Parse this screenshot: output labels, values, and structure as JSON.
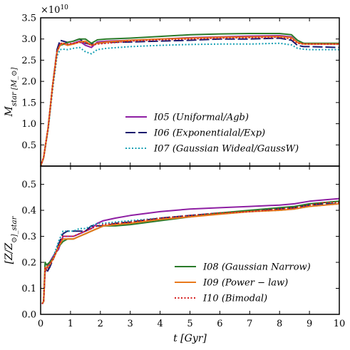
{
  "chart_data": [
    {
      "type": "line",
      "ylabel": "M_star [M_⊙]",
      "multiplier": "×10^10",
      "xlim": [
        0,
        10
      ],
      "ylim": [
        0,
        3.5
      ],
      "xticks": [
        0,
        1,
        2,
        3,
        4,
        5,
        6,
        7,
        8,
        9,
        10
      ],
      "yticks": [
        0.5,
        1.0,
        1.5,
        2.0,
        2.5,
        3.0,
        3.5
      ],
      "ytick_labels": [
        "0.5",
        "1.0",
        "1.5",
        "2.0",
        "2.5",
        "3.0",
        "3.5"
      ],
      "grid": false,
      "legend_position": "lower-center",
      "series": [
        {
          "name": "I05 (Uniformal/Agb)",
          "color": "#8e1fa3",
          "dash": "solid",
          "x": [
            0,
            0.1,
            0.25,
            0.4,
            0.55,
            0.65,
            0.75,
            0.9,
            1.1,
            1.3,
            1.5,
            1.7,
            1.9,
            2.2,
            3,
            4,
            5,
            6,
            7,
            8,
            8.4,
            8.6,
            8.8,
            9,
            10
          ],
          "y": [
            0,
            0.2,
            0.9,
            1.9,
            2.7,
            2.88,
            2.88,
            2.86,
            2.9,
            2.95,
            2.85,
            2.8,
            2.93,
            2.95,
            2.97,
            3.0,
            3.03,
            3.05,
            3.07,
            3.08,
            3.05,
            2.92,
            2.9,
            2.88,
            2.88
          ]
        },
        {
          "name": "I06 (Exponentialal/Exp)",
          "color": "#1a1a6e",
          "dash": "long",
          "x": [
            0,
            0.1,
            0.25,
            0.4,
            0.55,
            0.65,
            0.75,
            0.9,
            1.1,
            1.3,
            1.5,
            1.7,
            1.9,
            2.2,
            3,
            4,
            5,
            6,
            7,
            8,
            8.4,
            8.6,
            8.8,
            9,
            10
          ],
          "y": [
            0,
            0.2,
            0.9,
            1.9,
            2.75,
            2.97,
            2.95,
            2.92,
            2.95,
            3.0,
            2.9,
            2.87,
            2.9,
            2.92,
            2.93,
            2.95,
            2.97,
            3.0,
            3.0,
            3.02,
            2.97,
            2.85,
            2.82,
            2.82,
            2.8
          ]
        },
        {
          "name": "I07 (Gaussian Wideal/GaussW)",
          "color": "#16a0b4",
          "dash": "dotted",
          "x": [
            0,
            0.1,
            0.25,
            0.4,
            0.55,
            0.65,
            0.75,
            0.9,
            1.1,
            1.3,
            1.5,
            1.7,
            1.9,
            2.2,
            3,
            4,
            5,
            6,
            7,
            8,
            8.4,
            8.6,
            8.8,
            9,
            10
          ],
          "y": [
            0,
            0.2,
            0.85,
            1.8,
            2.6,
            2.75,
            2.76,
            2.75,
            2.78,
            2.8,
            2.7,
            2.65,
            2.75,
            2.78,
            2.82,
            2.85,
            2.87,
            2.88,
            2.88,
            2.9,
            2.86,
            2.78,
            2.76,
            2.75,
            2.75
          ]
        },
        {
          "name": "",
          "color": "#2a7a2a",
          "dash": "solid",
          "x": [
            0,
            0.1,
            0.25,
            0.4,
            0.55,
            0.65,
            0.75,
            0.9,
            1.1,
            1.3,
            1.5,
            1.7,
            1.9,
            2.2,
            3,
            4,
            5,
            6,
            7,
            8,
            8.4,
            8.6,
            8.8,
            9,
            10
          ],
          "y": [
            0,
            0.2,
            0.9,
            1.9,
            2.7,
            2.85,
            2.87,
            2.92,
            2.95,
            3.0,
            3.0,
            2.9,
            2.98,
            3.0,
            3.02,
            3.06,
            3.1,
            3.12,
            3.13,
            3.13,
            3.1,
            2.97,
            2.9,
            2.9,
            2.9
          ]
        },
        {
          "name": "",
          "color": "#e8791c",
          "dash": "solid",
          "x": [
            0,
            0.1,
            0.25,
            0.4,
            0.55,
            0.65,
            0.75,
            0.9,
            1.1,
            1.3,
            1.5,
            1.7,
            1.9,
            2.2,
            3,
            4,
            5,
            6,
            7,
            8,
            8.4,
            8.6,
            8.8,
            9,
            10
          ],
          "y": [
            0,
            0.2,
            0.9,
            1.9,
            2.7,
            2.85,
            2.9,
            2.85,
            2.88,
            2.93,
            2.95,
            2.85,
            2.9,
            2.93,
            2.97,
            3.0,
            3.02,
            3.04,
            3.05,
            3.06,
            3.03,
            2.92,
            2.88,
            2.88,
            2.88
          ]
        },
        {
          "name": "",
          "color": "#d62020",
          "dash": "dotted",
          "x": [
            0,
            0.1,
            0.25,
            0.4,
            0.55,
            0.65,
            0.75,
            0.9,
            1.1,
            1.3,
            1.5,
            1.7,
            1.9,
            2.2,
            3,
            4,
            5,
            6,
            7,
            8,
            8.4,
            8.6,
            8.8,
            9,
            10
          ],
          "y": [
            0,
            0.2,
            0.9,
            1.9,
            2.7,
            2.9,
            2.9,
            2.88,
            2.9,
            2.92,
            2.92,
            2.85,
            2.88,
            2.9,
            2.95,
            2.98,
            3.0,
            3.02,
            3.03,
            3.04,
            3.0,
            2.9,
            2.88,
            2.88,
            2.88
          ]
        }
      ]
    },
    {
      "type": "line",
      "xlabel": "t [Gyr]",
      "ylabel": "[Z/Z_⊙]_star",
      "xlim": [
        0,
        10
      ],
      "ylim": [
        0,
        0.57
      ],
      "xticks": [
        0,
        1,
        2,
        3,
        4,
        5,
        6,
        7,
        8,
        9,
        10
      ],
      "yticks": [
        0.0,
        0.1,
        0.2,
        0.3,
        0.4,
        0.5
      ],
      "ytick_labels": [
        "0.0",
        "0.1",
        "0.2",
        "0.3",
        "0.4",
        "0.5"
      ],
      "grid": false,
      "legend_position": "lower-right",
      "series": [
        {
          "name": "",
          "color": "#8e1fa3",
          "dash": "solid",
          "x": [
            0.05,
            0.1,
            0.15,
            0.2,
            0.3,
            0.45,
            0.6,
            0.75,
            0.9,
            1.1,
            1.3,
            1.5,
            1.7,
            1.9,
            2.1,
            2.5,
            3,
            4,
            5,
            6,
            7,
            8,
            8.5,
            9,
            9.5,
            10
          ],
          "y": [
            0.04,
            0.05,
            0.17,
            0.18,
            0.2,
            0.23,
            0.25,
            0.3,
            0.3,
            0.3,
            0.31,
            0.32,
            0.33,
            0.35,
            0.36,
            0.37,
            0.38,
            0.395,
            0.405,
            0.41,
            0.415,
            0.42,
            0.425,
            0.435,
            0.44,
            0.445
          ]
        },
        {
          "name": "",
          "color": "#1a1a6e",
          "dash": "long",
          "x": [
            0.05,
            0.1,
            0.15,
            0.2,
            0.3,
            0.45,
            0.6,
            0.75,
            0.9,
            1.1,
            1.3,
            1.5,
            1.7,
            1.9,
            2.1,
            2.5,
            3,
            4,
            5,
            6,
            7,
            8,
            8.5,
            9,
            9.5,
            10
          ],
          "y": [
            0.04,
            0.05,
            0.17,
            0.16,
            0.18,
            0.22,
            0.27,
            0.31,
            0.32,
            0.32,
            0.32,
            0.32,
            0.34,
            0.34,
            0.34,
            0.35,
            0.355,
            0.37,
            0.38,
            0.39,
            0.395,
            0.405,
            0.41,
            0.42,
            0.425,
            0.425
          ]
        },
        {
          "name": "",
          "color": "#16a0b4",
          "dash": "dotted",
          "x": [
            0.05,
            0.1,
            0.15,
            0.2,
            0.3,
            0.45,
            0.6,
            0.75,
            0.9,
            1.1,
            1.3,
            1.5,
            1.7,
            1.9,
            2.1,
            2.5,
            3,
            4,
            5,
            6,
            7,
            8,
            8.5,
            9,
            9.5,
            10
          ],
          "y": [
            0.04,
            0.05,
            0.17,
            0.17,
            0.19,
            0.23,
            0.28,
            0.32,
            0.32,
            0.32,
            0.33,
            0.33,
            0.34,
            0.35,
            0.35,
            0.355,
            0.36,
            0.37,
            0.38,
            0.39,
            0.395,
            0.4,
            0.405,
            0.415,
            0.42,
            0.425
          ]
        },
        {
          "name": "I08 (Gaussian Narrow)",
          "color": "#2a7a2a",
          "dash": "solid",
          "x": [
            0.05,
            0.1,
            0.15,
            0.2,
            0.3,
            0.45,
            0.6,
            0.75,
            0.9,
            1.1,
            1.3,
            1.5,
            1.7,
            1.9,
            2.1,
            2.5,
            3,
            4,
            5,
            6,
            7,
            8,
            8.5,
            9,
            9.5,
            10
          ],
          "y": [
            0.04,
            0.05,
            0.2,
            0.19,
            0.2,
            0.22,
            0.26,
            0.28,
            0.29,
            0.29,
            0.3,
            0.31,
            0.32,
            0.33,
            0.34,
            0.34,
            0.345,
            0.36,
            0.375,
            0.39,
            0.4,
            0.41,
            0.415,
            0.425,
            0.43,
            0.435
          ]
        },
        {
          "name": "I09 (Power-law)",
          "color": "#e8791c",
          "dash": "solid",
          "x": [
            0.05,
            0.1,
            0.15,
            0.2,
            0.3,
            0.45,
            0.6,
            0.75,
            0.9,
            1.1,
            1.3,
            1.5,
            1.7,
            1.9,
            2.1,
            2.5,
            3,
            4,
            5,
            6,
            7,
            8,
            8.5,
            9,
            9.5,
            10
          ],
          "y": [
            0.04,
            0.05,
            0.18,
            0.18,
            0.19,
            0.22,
            0.26,
            0.29,
            0.29,
            0.29,
            0.3,
            0.31,
            0.32,
            0.33,
            0.34,
            0.345,
            0.35,
            0.365,
            0.375,
            0.385,
            0.395,
            0.4,
            0.405,
            0.415,
            0.42,
            0.425
          ]
        },
        {
          "name": "I10 (Bimodal)",
          "color": "#d62020",
          "dash": "dotted",
          "x": [
            0.05,
            0.1,
            0.15,
            0.2,
            0.3,
            0.45,
            0.6,
            0.75,
            0.9,
            1.1,
            1.3,
            1.5,
            1.7,
            1.9,
            2.1,
            2.5,
            3,
            4,
            5,
            6,
            7,
            8,
            8.5,
            9,
            9.5,
            10
          ],
          "y": [
            0.04,
            0.05,
            0.18,
            0.17,
            0.19,
            0.22,
            0.26,
            0.3,
            0.3,
            0.3,
            0.31,
            0.32,
            0.33,
            0.34,
            0.345,
            0.35,
            0.355,
            0.37,
            0.38,
            0.39,
            0.395,
            0.405,
            0.41,
            0.42,
            0.43,
            0.43
          ]
        }
      ]
    }
  ],
  "legends": {
    "top": [
      {
        "prefix": "I05",
        "label": "(Uniformal/Agb)",
        "color": "#8e1fa3",
        "dash": "solid"
      },
      {
        "prefix": "I06",
        "label": "(Exponentialal/Exp)",
        "color": "#1a1a6e",
        "dash": "long"
      },
      {
        "prefix": "I07",
        "label": "(Gaussian Wideal/GaussW)",
        "color": "#16a0b4",
        "dash": "dotted"
      }
    ],
    "bottom": [
      {
        "prefix": "I08",
        "label": "(Gaussian Narrow)",
        "color": "#2a7a2a",
        "dash": "solid"
      },
      {
        "prefix": "I09",
        "label": "(Power − law)",
        "color": "#e8791c",
        "dash": "solid"
      },
      {
        "prefix": "I10",
        "label": "(Bimodal)",
        "color": "#d62020",
        "dash": "dotted"
      }
    ]
  }
}
